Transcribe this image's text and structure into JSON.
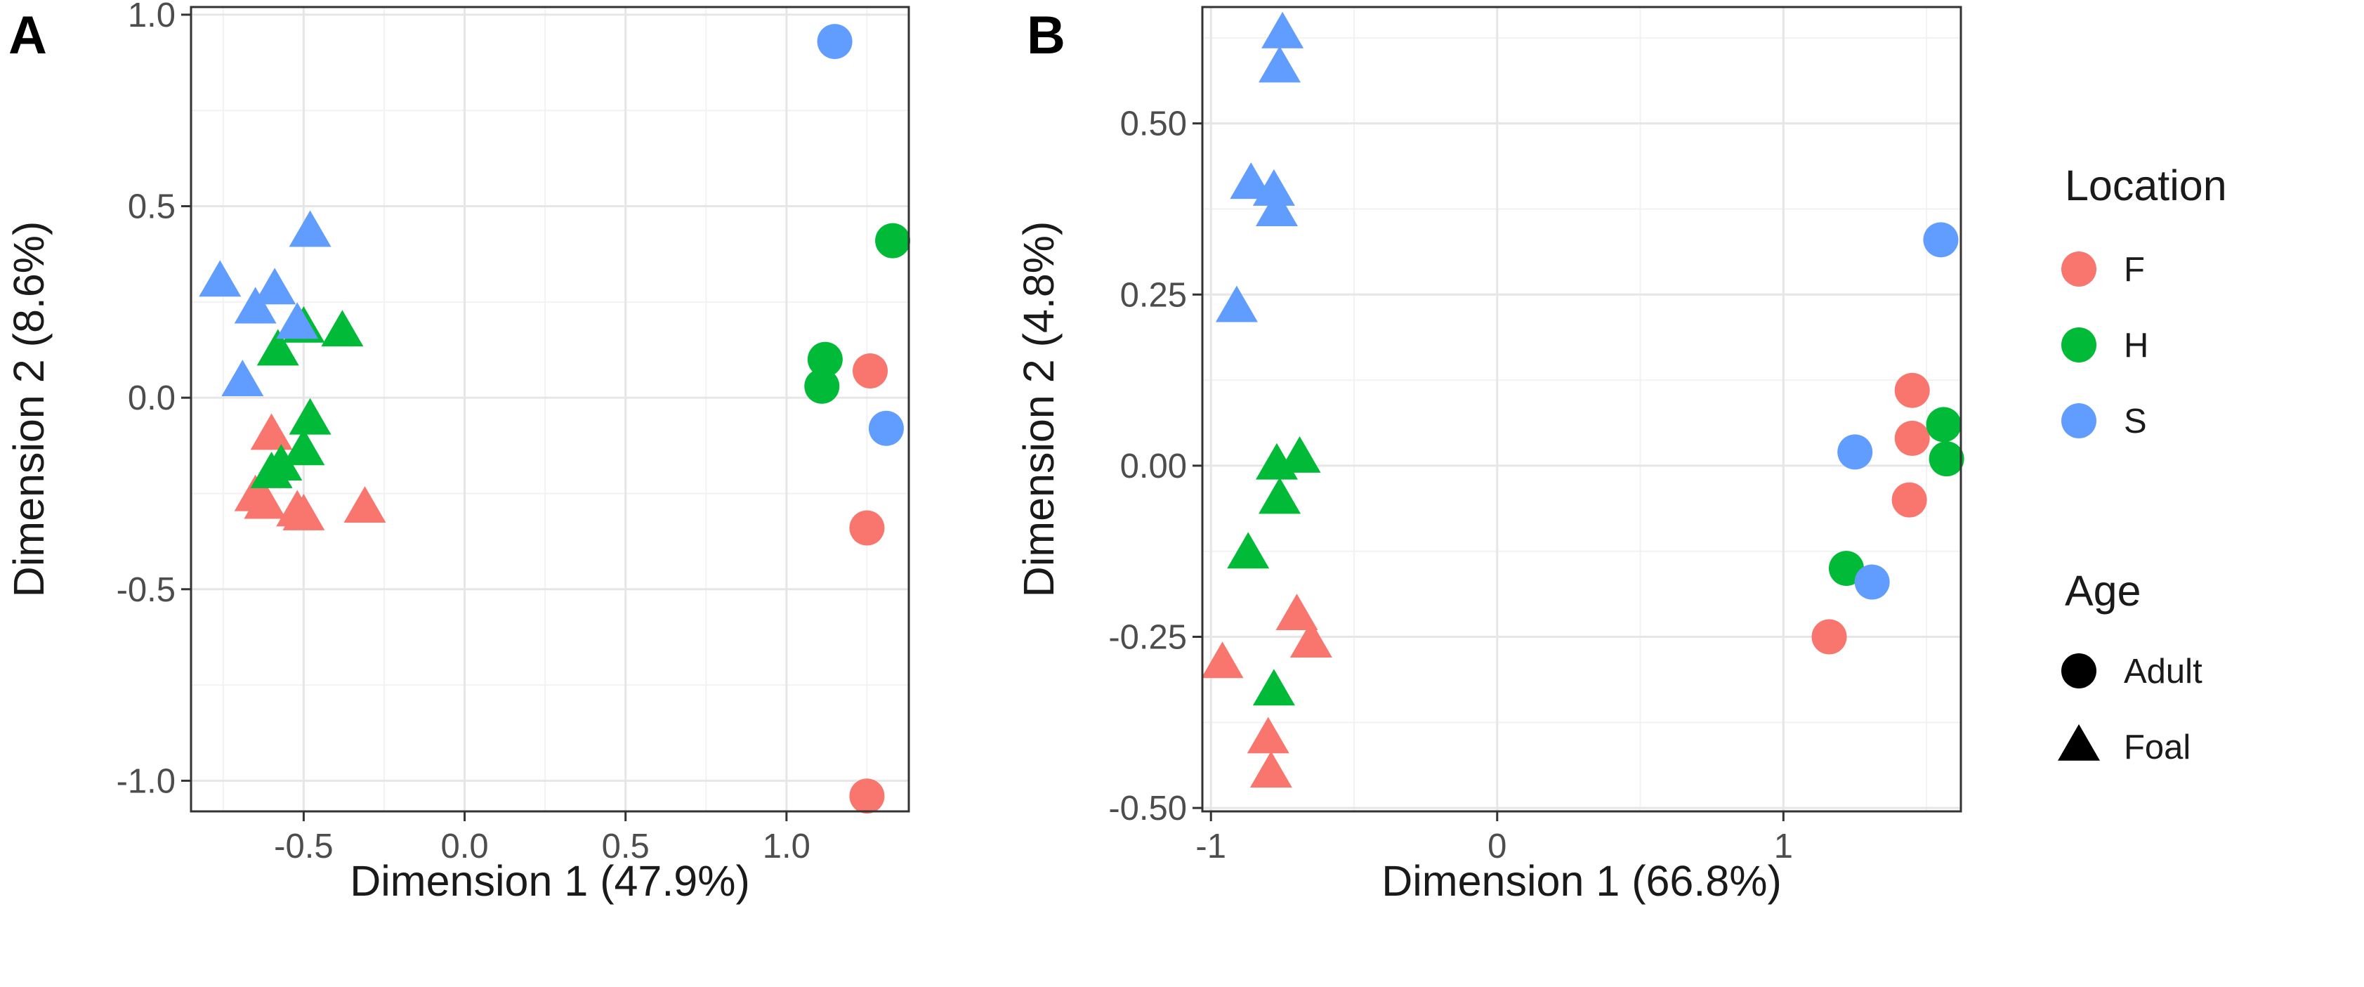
{
  "legend": {
    "location_title": "Location",
    "age_title": "Age",
    "location_items": [
      {
        "key": "F",
        "label": "F",
        "color": "#F8766D"
      },
      {
        "key": "H",
        "label": "H",
        "color": "#00BA38"
      },
      {
        "key": "S",
        "label": "S",
        "color": "#619CFF"
      }
    ],
    "age_items": [
      {
        "key": "Adult",
        "label": "Adult",
        "shape": "circle"
      },
      {
        "key": "Foal",
        "label": "Foal",
        "shape": "triangle"
      }
    ]
  },
  "chart_data": [
    {
      "type": "scatter",
      "panel": "A",
      "title": "",
      "xlabel": "Dimension 1 (47.9%)",
      "ylabel": "Dimension 2 (8.6%)",
      "xlim": [
        -0.85,
        1.38
      ],
      "ylim": [
        -1.08,
        1.02
      ],
      "xticks": [
        -0.5,
        0.0,
        0.5,
        1.0
      ],
      "xtick_labels": [
        "-0.5",
        "0.0",
        "0.5",
        "1.0"
      ],
      "yticks": [
        -1.0,
        -0.5,
        0.0,
        0.5,
        1.0
      ],
      "ytick_labels": [
        "-1.0",
        "-0.5",
        "0.0",
        "0.5",
        "1.0"
      ],
      "grid": true,
      "points": [
        {
          "x": 1.15,
          "y": 0.93,
          "location": "S",
          "age": "Adult"
        },
        {
          "x": 1.33,
          "y": 0.41,
          "location": "H",
          "age": "Adult"
        },
        {
          "x": 1.12,
          "y": 0.1,
          "location": "H",
          "age": "Adult"
        },
        {
          "x": 1.11,
          "y": 0.03,
          "location": "H",
          "age": "Adult"
        },
        {
          "x": 1.26,
          "y": 0.07,
          "location": "F",
          "age": "Adult"
        },
        {
          "x": 1.31,
          "y": -0.08,
          "location": "S",
          "age": "Adult"
        },
        {
          "x": 1.25,
          "y": -0.34,
          "location": "F",
          "age": "Adult"
        },
        {
          "x": 1.25,
          "y": -1.04,
          "location": "F",
          "age": "Adult"
        },
        {
          "x": -0.6,
          "y": -0.1,
          "location": "F",
          "age": "Foal"
        },
        {
          "x": -0.65,
          "y": -0.26,
          "location": "F",
          "age": "Foal"
        },
        {
          "x": -0.62,
          "y": -0.28,
          "location": "F",
          "age": "Foal"
        },
        {
          "x": -0.5,
          "y": -0.31,
          "location": "F",
          "age": "Foal"
        },
        {
          "x": -0.31,
          "y": -0.29,
          "location": "F",
          "age": "Foal"
        },
        {
          "x": -0.52,
          "y": -0.3,
          "location": "F",
          "age": "Foal"
        },
        {
          "x": -0.58,
          "y": 0.12,
          "location": "H",
          "age": "Foal"
        },
        {
          "x": -0.5,
          "y": 0.18,
          "location": "H",
          "age": "Foal"
        },
        {
          "x": -0.38,
          "y": 0.17,
          "location": "H",
          "age": "Foal"
        },
        {
          "x": -0.48,
          "y": -0.06,
          "location": "H",
          "age": "Foal"
        },
        {
          "x": -0.5,
          "y": -0.14,
          "location": "H",
          "age": "Foal"
        },
        {
          "x": -0.6,
          "y": -0.2,
          "location": "H",
          "age": "Foal"
        },
        {
          "x": -0.57,
          "y": -0.18,
          "location": "H",
          "age": "Foal"
        },
        {
          "x": -0.48,
          "y": 0.43,
          "location": "S",
          "age": "Foal"
        },
        {
          "x": -0.76,
          "y": 0.3,
          "location": "S",
          "age": "Foal"
        },
        {
          "x": -0.59,
          "y": 0.28,
          "location": "S",
          "age": "Foal"
        },
        {
          "x": -0.65,
          "y": 0.23,
          "location": "S",
          "age": "Foal"
        },
        {
          "x": -0.52,
          "y": 0.19,
          "location": "S",
          "age": "Foal"
        },
        {
          "x": -0.69,
          "y": 0.04,
          "location": "S",
          "age": "Foal"
        }
      ]
    },
    {
      "type": "scatter",
      "panel": "B",
      "title": "",
      "xlabel": "Dimension 1 (66.8%)",
      "ylabel": "Dimension 2 (4.8%)",
      "xlim": [
        -1.03,
        1.62
      ],
      "ylim": [
        -0.505,
        0.67
      ],
      "xticks": [
        -1,
        0,
        1
      ],
      "xtick_labels": [
        "-1",
        "0",
        "1"
      ],
      "yticks": [
        -0.5,
        -0.25,
        0.0,
        0.25,
        0.5
      ],
      "ytick_labels": [
        "-0.50",
        "-0.25",
        "0.00",
        "0.25",
        "0.50"
      ],
      "grid": true,
      "points": [
        {
          "x": 1.55,
          "y": 0.33,
          "location": "S",
          "age": "Adult"
        },
        {
          "x": 1.45,
          "y": 0.11,
          "location": "F",
          "age": "Adult"
        },
        {
          "x": 1.45,
          "y": 0.04,
          "location": "F",
          "age": "Adult"
        },
        {
          "x": 1.44,
          "y": -0.05,
          "location": "F",
          "age": "Adult"
        },
        {
          "x": 1.56,
          "y": 0.06,
          "location": "H",
          "age": "Adult"
        },
        {
          "x": 1.57,
          "y": 0.01,
          "location": "H",
          "age": "Adult"
        },
        {
          "x": 1.25,
          "y": 0.02,
          "location": "S",
          "age": "Adult"
        },
        {
          "x": 1.22,
          "y": -0.15,
          "location": "H",
          "age": "Adult"
        },
        {
          "x": 1.31,
          "y": -0.17,
          "location": "S",
          "age": "Adult"
        },
        {
          "x": 1.16,
          "y": -0.25,
          "location": "F",
          "age": "Adult"
        },
        {
          "x": -0.75,
          "y": 0.63,
          "location": "S",
          "age": "Foal"
        },
        {
          "x": -0.76,
          "y": 0.58,
          "location": "S",
          "age": "Foal"
        },
        {
          "x": -0.86,
          "y": 0.41,
          "location": "S",
          "age": "Foal"
        },
        {
          "x": -0.78,
          "y": 0.4,
          "location": "S",
          "age": "Foal"
        },
        {
          "x": -0.77,
          "y": 0.37,
          "location": "S",
          "age": "Foal"
        },
        {
          "x": -0.91,
          "y": 0.23,
          "location": "S",
          "age": "Foal"
        },
        {
          "x": -0.77,
          "y": 0.0,
          "location": "H",
          "age": "Foal"
        },
        {
          "x": -0.69,
          "y": 0.01,
          "location": "H",
          "age": "Foal"
        },
        {
          "x": -0.76,
          "y": -0.05,
          "location": "H",
          "age": "Foal"
        },
        {
          "x": -0.87,
          "y": -0.13,
          "location": "H",
          "age": "Foal"
        },
        {
          "x": -0.78,
          "y": -0.33,
          "location": "H",
          "age": "Foal"
        },
        {
          "x": -0.7,
          "y": -0.22,
          "location": "F",
          "age": "Foal"
        },
        {
          "x": -0.65,
          "y": -0.26,
          "location": "F",
          "age": "Foal"
        },
        {
          "x": -0.96,
          "y": -0.29,
          "location": "F",
          "age": "Foal"
        },
        {
          "x": -0.8,
          "y": -0.4,
          "location": "F",
          "age": "Foal"
        },
        {
          "x": -0.79,
          "y": -0.45,
          "location": "F",
          "age": "Foal"
        }
      ]
    }
  ]
}
